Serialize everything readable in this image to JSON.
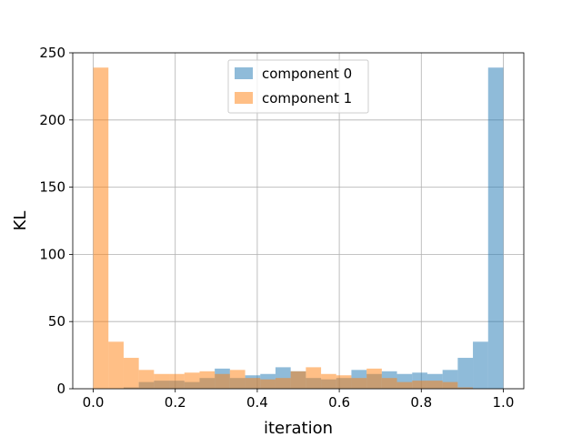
{
  "chart_data": {
    "type": "bar",
    "xlabel": "iteration",
    "ylabel": "KL",
    "xlim": [
      -0.05,
      1.05
    ],
    "ylim": [
      0,
      250
    ],
    "xticks": [
      "0.0",
      "0.2",
      "0.4",
      "0.6",
      "0.8",
      "1.0"
    ],
    "xtick_values": [
      0.0,
      0.2,
      0.4,
      0.6,
      0.8,
      1.0
    ],
    "yticks": [
      "0",
      "50",
      "100",
      "150",
      "200",
      "250"
    ],
    "ytick_values": [
      0,
      50,
      100,
      150,
      200,
      250
    ],
    "grid": true,
    "legend_position": "top-center",
    "bin_edges": [
      0.0,
      0.037,
      0.0741,
      0.1111,
      0.1481,
      0.1852,
      0.2222,
      0.2593,
      0.2963,
      0.3333,
      0.3704,
      0.4074,
      0.4444,
      0.4815,
      0.5185,
      0.5556,
      0.5926,
      0.6296,
      0.6667,
      0.7037,
      0.7407,
      0.7778,
      0.8148,
      0.8519,
      0.8889,
      0.9259,
      0.963,
      1.0
    ],
    "series": [
      {
        "name": "component 0",
        "color": "#1f77b4",
        "values": [
          0,
          0,
          1,
          5,
          6,
          6,
          5,
          8,
          15,
          8,
          10,
          11,
          16,
          13,
          8,
          7,
          8,
          14,
          11,
          13,
          11,
          12,
          11,
          14,
          23,
          35,
          239
        ]
      },
      {
        "name": "component 1",
        "color": "#ff7f0e",
        "values": [
          239,
          35,
          23,
          14,
          11,
          11,
          12,
          13,
          11,
          14,
          8,
          7,
          8,
          13,
          16,
          11,
          10,
          8,
          15,
          8,
          5,
          6,
          6,
          5,
          1,
          0,
          0
        ]
      }
    ]
  }
}
